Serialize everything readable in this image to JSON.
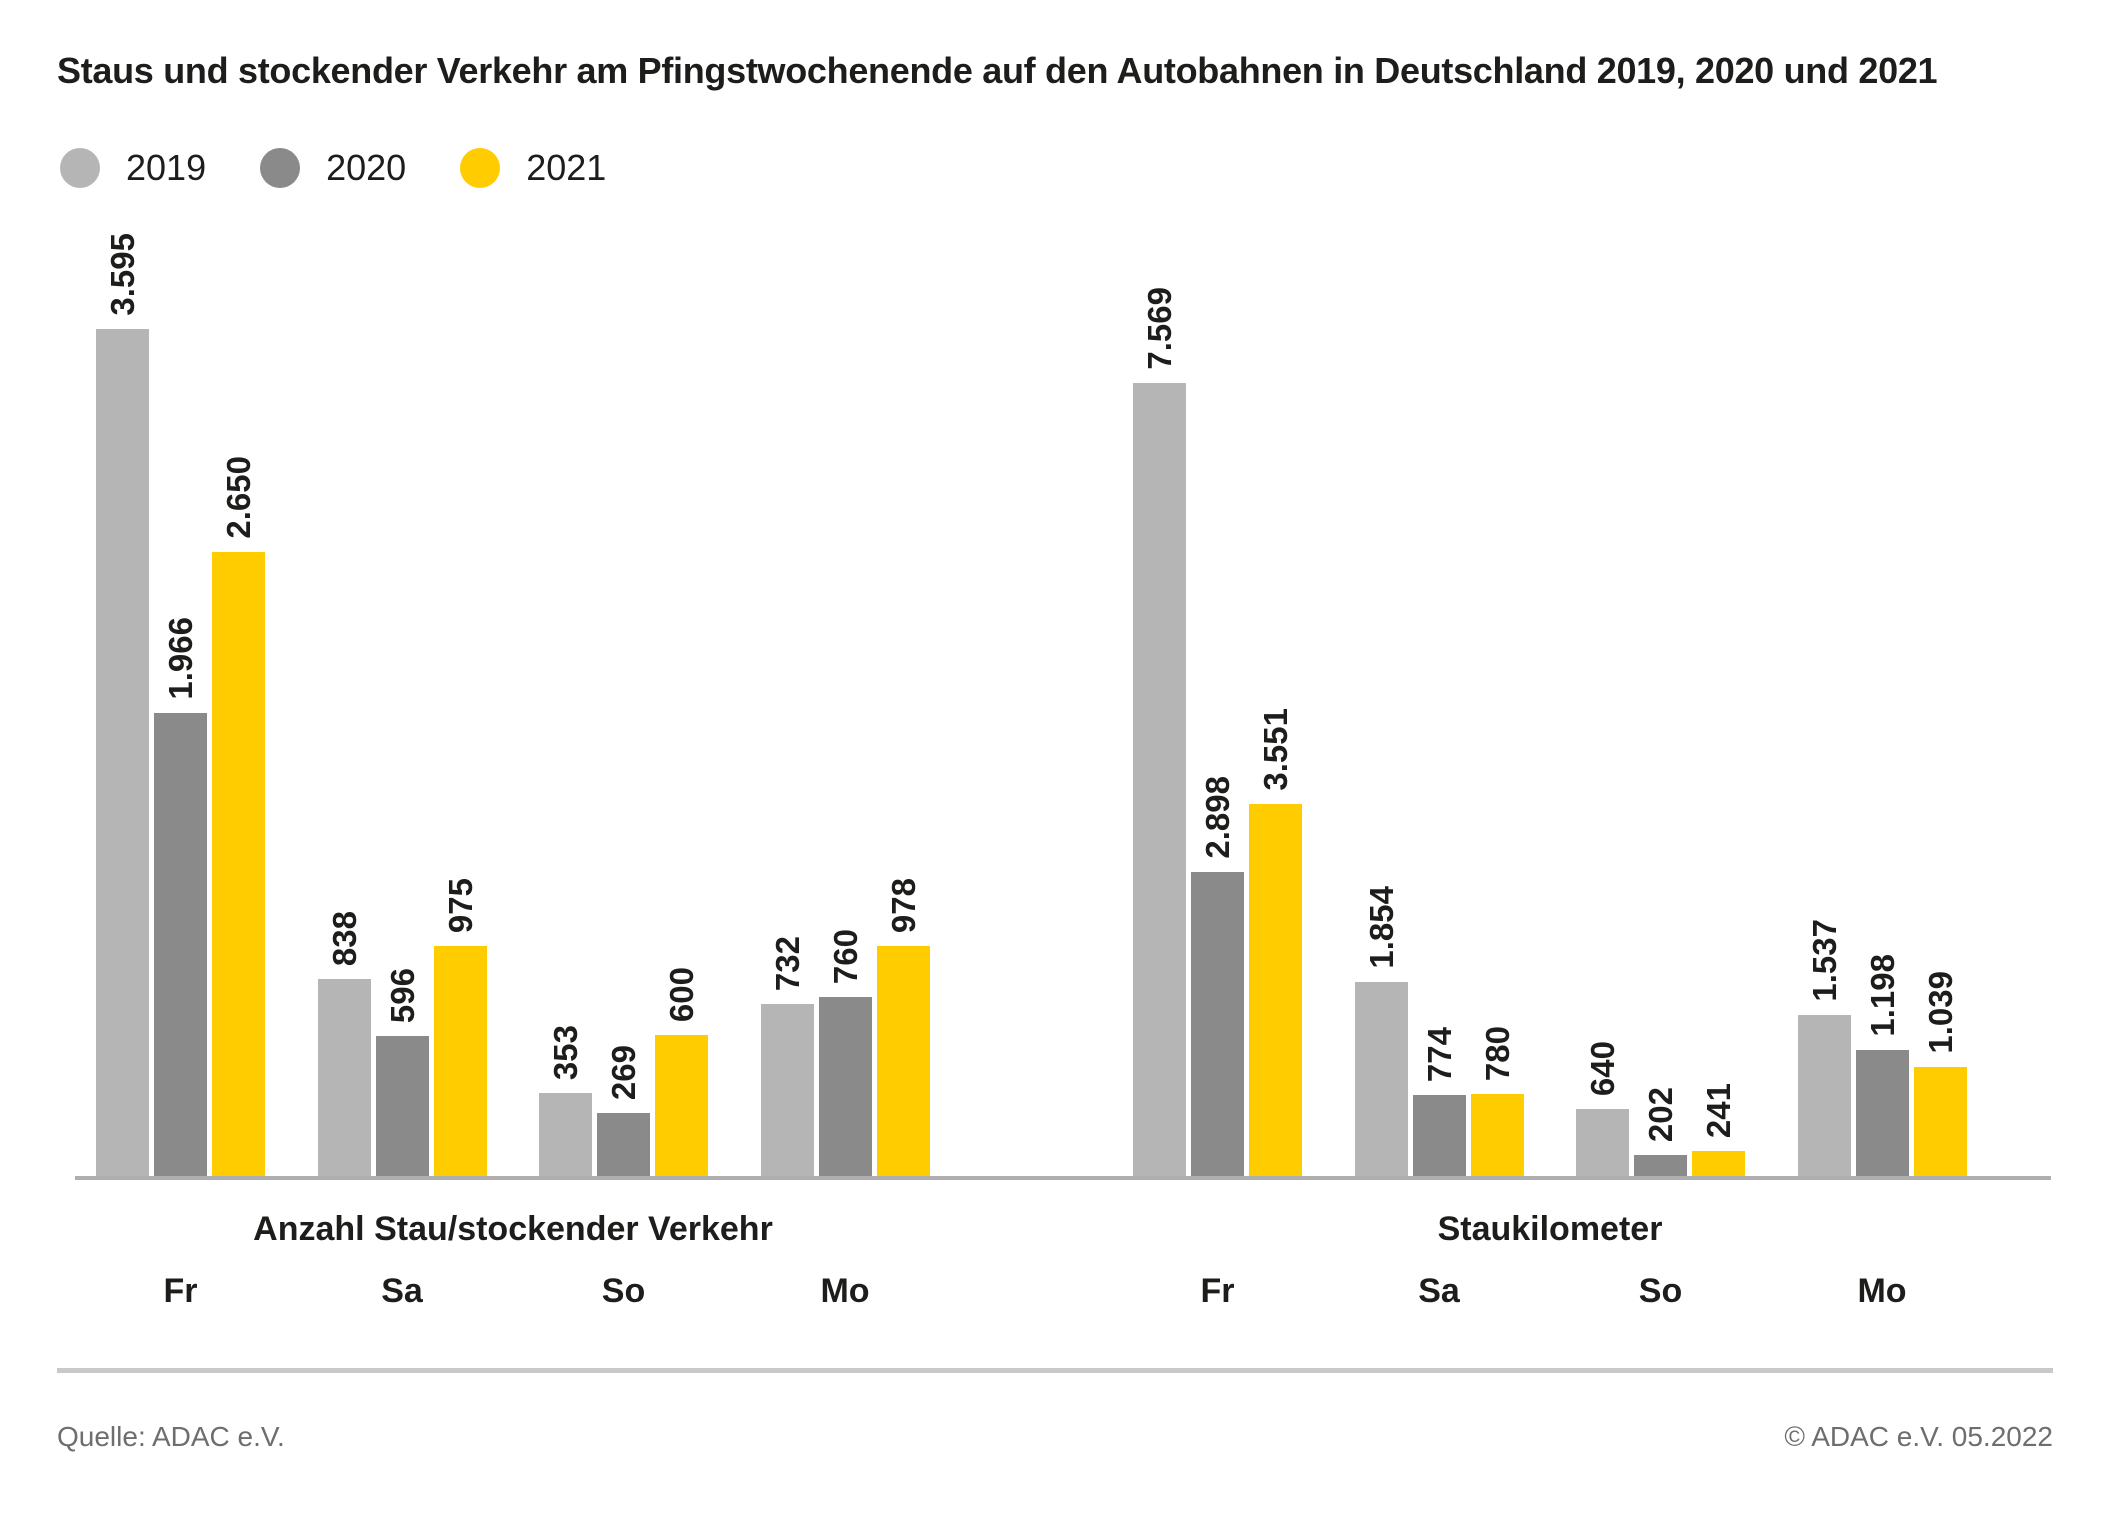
{
  "title": "Staus und stockender Verkehr am Pfingstwochenende auf den Autobahnen in Deutschland 2019, 2020 und 2021",
  "legend": [
    {
      "label": "2019",
      "color": "#b5b5b6"
    },
    {
      "label": "2020",
      "color": "#8a8a8a"
    },
    {
      "label": "2021",
      "color": "#ffcc00"
    }
  ],
  "chart_data": {
    "type": "bar",
    "grid": false,
    "value_labels_rotated": true,
    "series_names": [
      "2019",
      "2020",
      "2021"
    ],
    "groups": [
      {
        "title": "Anzahl Stau/stockender Verkehr",
        "categories": [
          "Fr",
          "Sa",
          "So",
          "Mo"
        ],
        "series": [
          {
            "name": "2019",
            "color": "#b5b5b6",
            "values": [
              3595,
              838,
              353,
              732
            ],
            "labels": [
              "3.595",
              "838",
              "353",
              "732"
            ]
          },
          {
            "name": "2020",
            "color": "#8a8a8a",
            "values": [
              1966,
              596,
              269,
              760
            ],
            "labels": [
              "1.966",
              "596",
              "269",
              "760"
            ]
          },
          {
            "name": "2021",
            "color": "#ffcc00",
            "values": [
              2650,
              975,
              600,
              978
            ],
            "labels": [
              "2.650",
              "975",
              "600",
              "978"
            ]
          }
        ]
      },
      {
        "title": "Staukilometer",
        "categories": [
          "Fr",
          "Sa",
          "So",
          "Mo"
        ],
        "series": [
          {
            "name": "2019",
            "color": "#b5b5b6",
            "values": [
              7569,
              1854,
              640,
              1537
            ],
            "labels": [
              "7.569",
              "1.854",
              "640",
              "1.537"
            ]
          },
          {
            "name": "2020",
            "color": "#8a8a8a",
            "values": [
              2898,
              774,
              202,
              1198
            ],
            "labels": [
              "2.898",
              "774",
              "202",
              "1.198"
            ]
          },
          {
            "name": "2021",
            "color": "#ffcc00",
            "values": [
              3551,
              780,
              241,
              1039
            ],
            "labels": [
              "3.551",
              "780",
              "241",
              "1.039"
            ]
          }
        ]
      }
    ]
  },
  "footer": {
    "source": "Quelle: ADAC e.V.",
    "copyright": "© ADAC e.V. 05.2022"
  }
}
